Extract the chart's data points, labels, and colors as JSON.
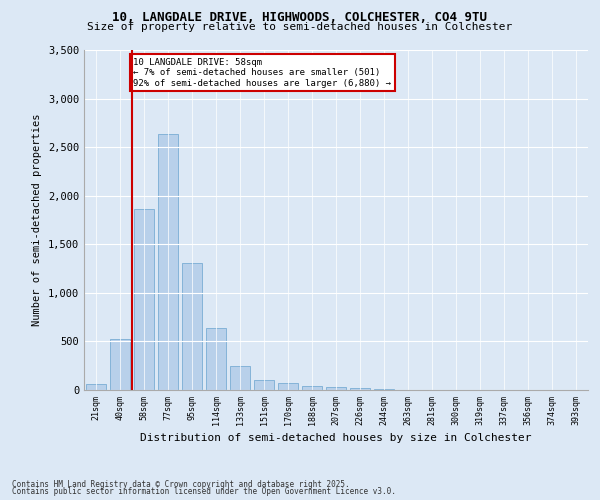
{
  "title1": "10, LANGDALE DRIVE, HIGHWOODS, COLCHESTER, CO4 9TU",
  "title2": "Size of property relative to semi-detached houses in Colchester",
  "xlabel": "Distribution of semi-detached houses by size in Colchester",
  "ylabel": "Number of semi-detached properties",
  "categories": [
    "21sqm",
    "40sqm",
    "58sqm",
    "77sqm",
    "95sqm",
    "114sqm",
    "133sqm",
    "151sqm",
    "170sqm",
    "188sqm",
    "207sqm",
    "226sqm",
    "244sqm",
    "263sqm",
    "281sqm",
    "300sqm",
    "319sqm",
    "337sqm",
    "356sqm",
    "374sqm",
    "393sqm"
  ],
  "values": [
    60,
    520,
    1860,
    2640,
    1310,
    640,
    245,
    100,
    75,
    40,
    28,
    18,
    8,
    4,
    2,
    1,
    0,
    0,
    0,
    0,
    0
  ],
  "bar_color": "#b8d0ea",
  "bar_edge_color": "#7aadd4",
  "vline_color": "#cc0000",
  "annotation_title": "10 LANGDALE DRIVE: 58sqm",
  "annotation_line1": "← 7% of semi-detached houses are smaller (501)",
  "annotation_line2": "92% of semi-detached houses are larger (6,880) →",
  "annotation_box_color": "#cc0000",
  "ylim": [
    0,
    3500
  ],
  "yticks": [
    0,
    500,
    1000,
    1500,
    2000,
    2500,
    3000,
    3500
  ],
  "footer1": "Contains HM Land Registry data © Crown copyright and database right 2025.",
  "footer2": "Contains public sector information licensed under the Open Government Licence v3.0.",
  "bg_color": "#dce8f5",
  "plot_bg_color": "#dce8f5"
}
